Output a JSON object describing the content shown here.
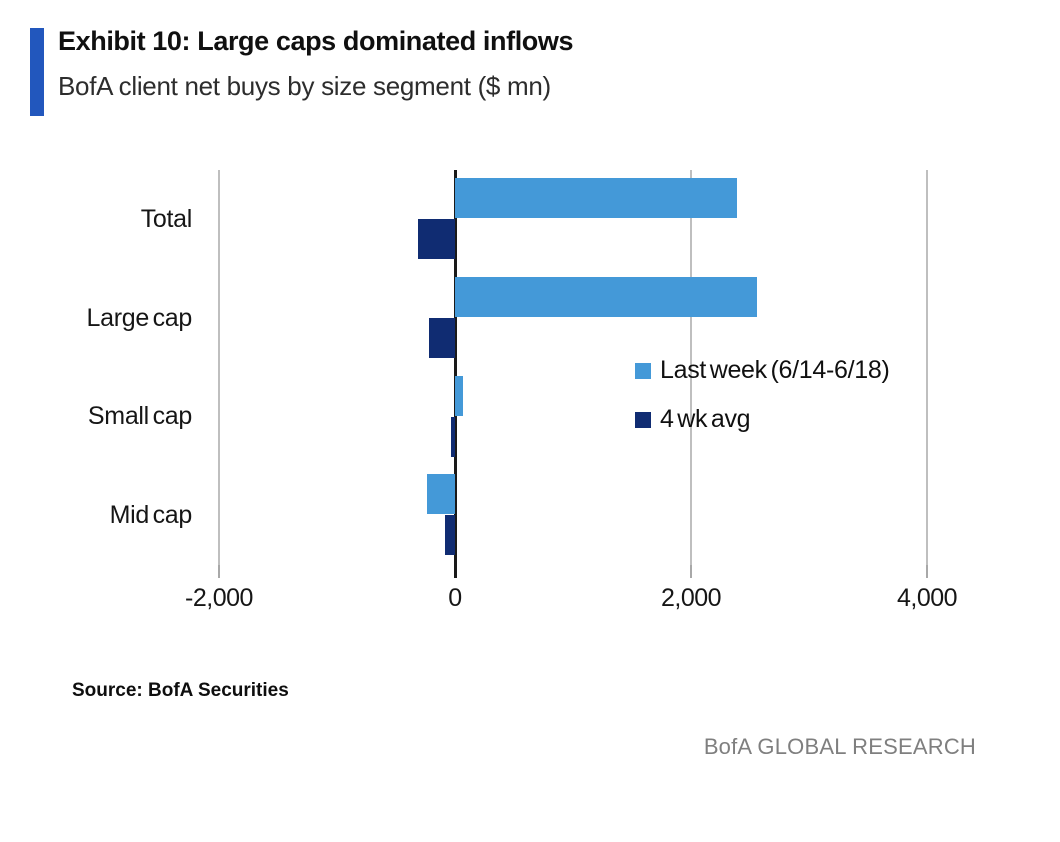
{
  "header": {
    "accent_color": "#2257BD"
  },
  "chart_data": {
    "type": "bar",
    "orientation": "horizontal",
    "title": "Exhibit 10: Large caps dominated inflows",
    "subtitle": "BofA client net buys by size segment ($ mn)",
    "categories": [
      "Total",
      "Large cap",
      "Small cap",
      "Mid cap"
    ],
    "series": [
      {
        "name": "Last week (6/14-6/18)",
        "color": "#4499D8",
        "values": [
          2390,
          2560,
          70,
          -240
        ]
      },
      {
        "name": "4 wk avg",
        "color": "#102C72",
        "values": [
          -310,
          -220,
          -30,
          -85
        ]
      }
    ],
    "xlim": [
      -2000,
      4000
    ],
    "xticks": [
      -2000,
      0,
      2000,
      4000
    ],
    "xtick_labels": [
      "-2,000",
      "0",
      "2,000",
      "4,000"
    ],
    "xlabel": "",
    "ylabel": "",
    "grid": true,
    "gridline_color": "#BFBFBF",
    "zero_axis_color": "#1a1a1a",
    "legend_position": "inside-right"
  },
  "footer": {
    "source": "Source: BofA Securities",
    "brand": "BofA GLOBAL RESEARCH"
  }
}
